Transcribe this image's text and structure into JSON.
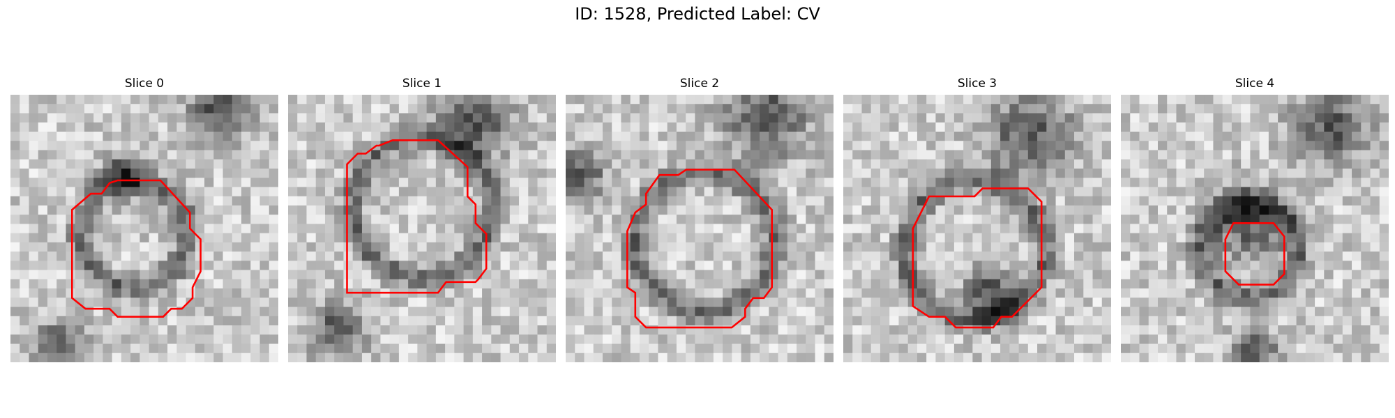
{
  "figure": {
    "title": "ID: 1528, Predicted Label: CV"
  },
  "outline_color": "#ff0000",
  "colormap": "grayscale",
  "panels": [
    {
      "title": "Slice 0"
    },
    {
      "title": "Slice 1"
    },
    {
      "title": "Slice 2"
    },
    {
      "title": "Slice 3"
    },
    {
      "title": "Slice 4"
    }
  ]
}
